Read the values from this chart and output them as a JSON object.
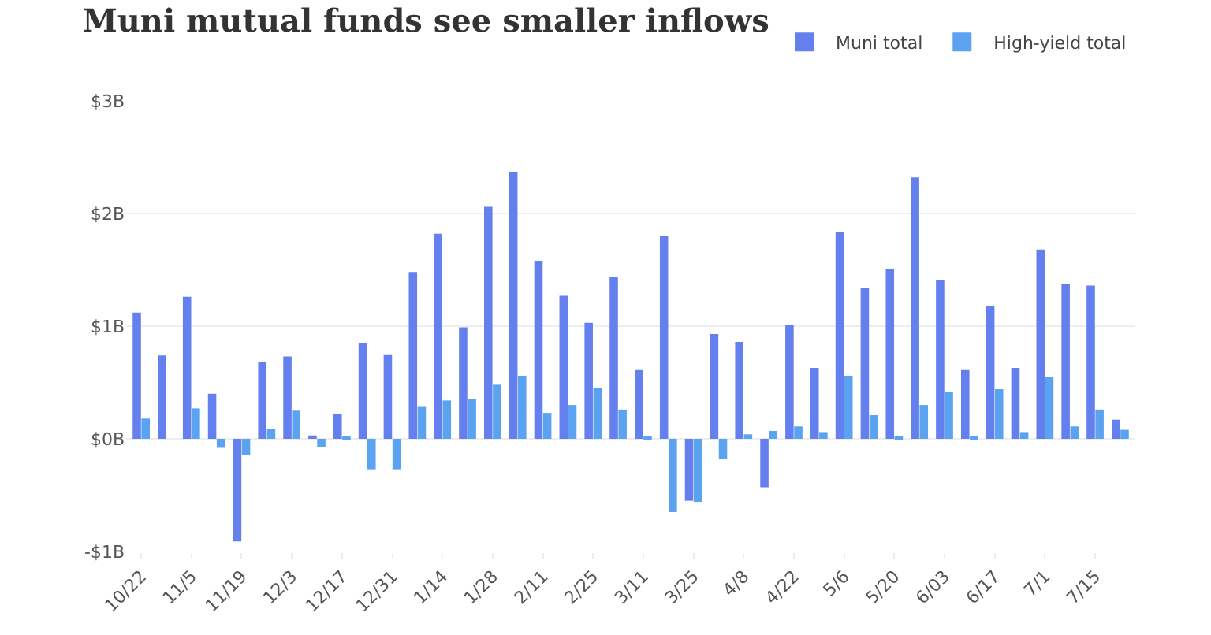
{
  "chart_data": {
    "type": "bar",
    "title": "Muni mutual funds see smaller inflows",
    "categories": [
      "10/22",
      null,
      "11/5",
      null,
      "11/19",
      null,
      "12/3",
      null,
      "12/17",
      null,
      "12/31",
      null,
      "1/14",
      null,
      "1/28",
      null,
      "2/11",
      null,
      "2/25",
      null,
      "3/11",
      null,
      "3/25",
      null,
      "4/8",
      null,
      "4/22",
      null,
      "5/6",
      null,
      "5/20",
      null,
      "6/03",
      null,
      "6/17",
      null,
      "7/1",
      null,
      "7/15",
      null
    ],
    "series": [
      {
        "name": "Muni total",
        "color": "#6480ee",
        "values": [
          1.12,
          0.74,
          1.26,
          0.4,
          -0.91,
          0.68,
          0.73,
          0.03,
          0.22,
          0.85,
          0.75,
          1.48,
          1.82,
          0.99,
          2.06,
          2.37,
          1.58,
          1.27,
          1.03,
          1.44,
          0.61,
          1.8,
          -0.55,
          0.93,
          0.86,
          -0.43,
          1.01,
          0.63,
          1.84,
          1.34,
          1.51,
          2.32,
          1.41,
          0.61,
          1.18,
          0.63,
          1.68,
          1.37,
          1.36,
          0.17
        ]
      },
      {
        "name": "High-yield total",
        "color": "#5ba3f0",
        "values": [
          0.18,
          0.0,
          0.27,
          -0.08,
          -0.14,
          0.09,
          0.25,
          -0.07,
          0.02,
          -0.27,
          -0.27,
          0.29,
          0.34,
          0.35,
          0.48,
          0.56,
          0.23,
          0.3,
          0.45,
          0.26,
          0.02,
          -0.65,
          -0.56,
          -0.18,
          0.04,
          0.07,
          0.11,
          0.06,
          0.56,
          0.21,
          0.01,
          0.3,
          0.42,
          0.01,
          0.44,
          0.06,
          0.55,
          0.11,
          0.26,
          0.08
        ]
      }
    ],
    "ylim": [
      -1,
      3
    ],
    "yticks": [
      {
        "value": -1,
        "label": "-$1B"
      },
      {
        "value": 0,
        "label": "$0B"
      },
      {
        "value": 1,
        "label": "$1B"
      },
      {
        "value": 2,
        "label": "$2B"
      },
      {
        "value": 3,
        "label": "$3B"
      }
    ],
    "grid": "y",
    "legend": "top right"
  }
}
